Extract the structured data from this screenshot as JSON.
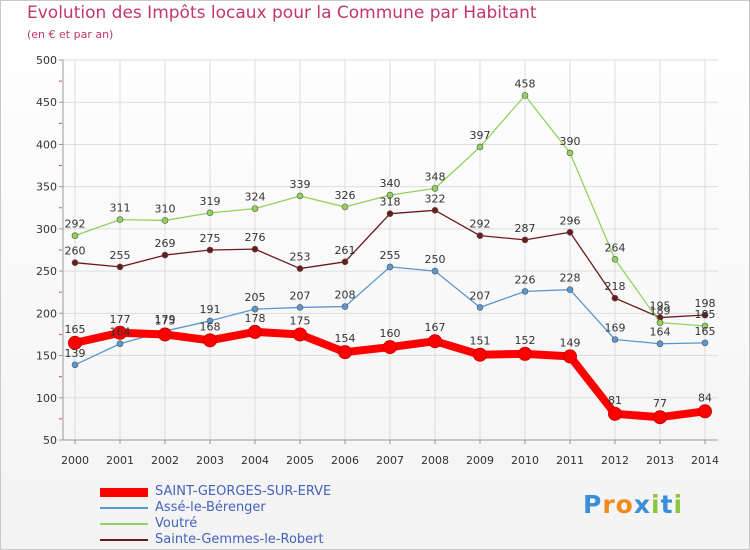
{
  "header": {
    "title": "Evolution des Impôts locaux pour la Commune par Habitant",
    "subtitle": "(en € et par an)"
  },
  "logo": {
    "letters": [
      "P",
      "r",
      "o",
      "x",
      "i",
      "t",
      "i"
    ],
    "colors": [
      "#3a8fd6",
      "#f08a1c",
      "#f08a1c",
      "#3a8fd6",
      "#8cc63f",
      "#3a8fd6",
      "#8cc63f"
    ]
  },
  "chart_data": {
    "type": "line",
    "x": [
      "2000",
      "2001",
      "2002",
      "2003",
      "2004",
      "2005",
      "2006",
      "2007",
      "2008",
      "2009",
      "2010",
      "2011",
      "2012",
      "2013",
      "2014"
    ],
    "ylim": [
      50,
      500
    ],
    "yticks": [
      50,
      100,
      150,
      200,
      250,
      300,
      350,
      400,
      450,
      500
    ],
    "grid": true,
    "legend_position": "bottom-left",
    "series": [
      {
        "name": "Sainte-Gemmes-le-Robert",
        "color": "#6e1a1a",
        "values": [
          260,
          255,
          269,
          275,
          276,
          253,
          261,
          318,
          322,
          292,
          287,
          296,
          218,
          195,
          198
        ]
      },
      {
        "name": "Voutré",
        "color": "#8fd35c",
        "values": [
          292,
          311,
          310,
          319,
          324,
          339,
          326,
          340,
          348,
          397,
          458,
          390,
          264,
          189,
          185
        ]
      },
      {
        "name": "Assé-le-Bérenger",
        "color": "#5a97cf",
        "values": [
          139,
          164,
          179,
          191,
          205,
          207,
          208,
          255,
          250,
          207,
          226,
          228,
          169,
          164,
          165
        ]
      },
      {
        "name": "SAINT-GEORGES-SUR-ERVE",
        "color": "#ff0000",
        "main": true,
        "values": [
          165,
          177,
          175,
          168,
          178,
          175,
          154,
          160,
          167,
          151,
          152,
          149,
          81,
          77,
          84
        ]
      }
    ],
    "legend_order": [
      "SAINT-GEORGES-SUR-ERVE",
      "Assé-le-Bérenger",
      "Voutré",
      "Sainte-Gemmes-le-Robert"
    ]
  }
}
